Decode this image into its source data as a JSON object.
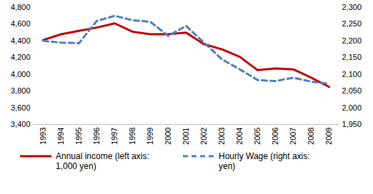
{
  "chart_data": {
    "type": "line",
    "categories": [
      "1993",
      "1994",
      "1995",
      "1996",
      "1997",
      "1998",
      "1999",
      "2000",
      "2001",
      "2002",
      "2003",
      "2004",
      "2005",
      "2006",
      "2007",
      "2008",
      "2009"
    ],
    "series": [
      {
        "name": "Annual income (left axis: 1,000 yen)",
        "color": "#c00000",
        "line_style": "solid",
        "values": [
          4410,
          4480,
          4520,
          4560,
          4610,
          4510,
          4480,
          4480,
          4500,
          4360,
          4300,
          4210,
          4050,
          4070,
          4060,
          3960,
          3850
        ]
      },
      {
        "name": "Hourly Wage (right axis: yen)",
        "color": "#4f81bd",
        "line_style": "dashed",
        "axis": "y2",
        "values": [
          2200,
          2195,
          2193,
          2260,
          2275,
          2262,
          2257,
          2215,
          2245,
          2195,
          2145,
          2115,
          2083,
          2080,
          2090,
          2078,
          2072
        ]
      }
    ],
    "ylim": [
      3400,
      4800
    ],
    "yticks": [
      {
        "value": 3400,
        "label": "3,400"
      },
      {
        "value": 3600,
        "label": "3,600"
      },
      {
        "value": 3800,
        "label": "3,800"
      },
      {
        "value": 4000,
        "label": "4,000"
      },
      {
        "value": 4200,
        "label": "4,200"
      },
      {
        "value": 4400,
        "label": "4,400"
      },
      {
        "value": 4600,
        "label": "4,600"
      },
      {
        "value": 4800,
        "label": "4,800"
      }
    ],
    "y2lim": [
      1950,
      2300
    ],
    "y2ticks": [
      {
        "value": 1950,
        "label": "1,950"
      },
      {
        "value": 2000,
        "label": "2,000"
      },
      {
        "value": 2050,
        "label": "2,050"
      },
      {
        "value": 2100,
        "label": "2,100"
      },
      {
        "value": 2150,
        "label": "2,150"
      },
      {
        "value": 2200,
        "label": "2,200"
      },
      {
        "value": 2250,
        "label": "2,250"
      },
      {
        "value": 2300,
        "label": "2,300"
      }
    ],
    "grid": false,
    "legend": "bottom"
  }
}
